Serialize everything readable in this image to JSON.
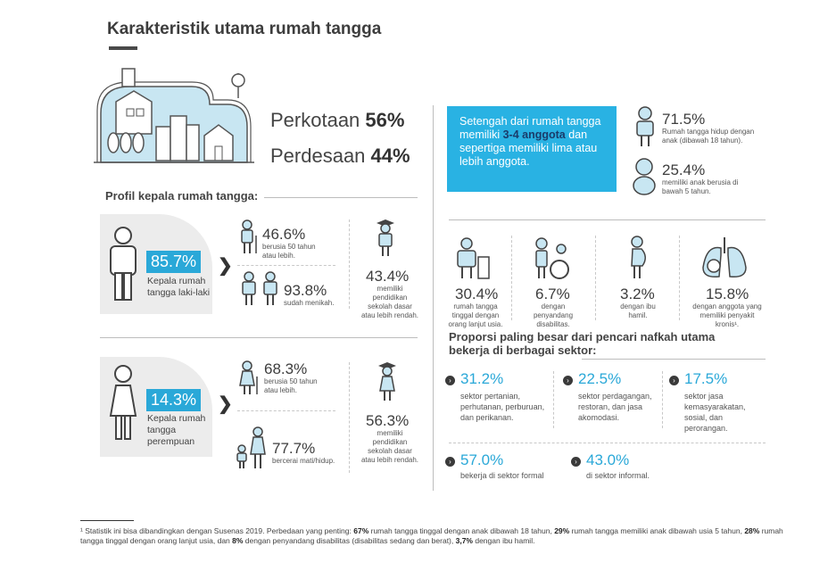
{
  "title": "Karakteristik utama rumah tangga",
  "urban": {
    "label": "Perkotaan",
    "value": "56%"
  },
  "rural": {
    "label": "Perdesaan",
    "value": "44%"
  },
  "profile_heading": "Profil kepala rumah tangga:",
  "male": {
    "pct": "85.7%",
    "label": "Kepala rumah tangga laki-laki",
    "age_pct": "46.6%",
    "age_caption": "berusia 50 tahun atau lebih.",
    "married_pct": "93.8%",
    "married_caption": "sudah menikah.",
    "edu_pct": "43.4%",
    "edu_caption": "memiliki pendidikan sekolah dasar atau lebih rendah."
  },
  "female": {
    "pct": "14.3%",
    "label": "Kepala rumah tangga perempuan",
    "age_pct": "68.3%",
    "age_caption": "berusia 50 tahun atau lebih.",
    "divorced_pct": "77.7%",
    "divorced_caption": "bercerai mati/hidup.",
    "edu_pct": "56.3%",
    "edu_caption": "memiliki pendidikan sekolah dasar atau lebih rendah."
  },
  "info_box": {
    "pre": "Setengah dari rumah tangga memiliki ",
    "bold": "3-4 anggota",
    "post": " dan sepertiga memiliki lima atau lebih anggota."
  },
  "children": {
    "pct": "71.5%",
    "caption": "Rumah tangga hidup dengan anak (dibawah 18 tahun)."
  },
  "under5": {
    "pct": "25.4%",
    "caption": "memiliki anak berusia di bawah 5 tahun."
  },
  "members": [
    {
      "pct": "30.4%",
      "caption": "rumah tangga tinggal dengan orang lanjut usia.",
      "icon": "elderly-icon"
    },
    {
      "pct": "6.7%",
      "caption": "dengan penyandang disabilitas.",
      "icon": "wheelchair-icon"
    },
    {
      "pct": "3.2%",
      "caption": "dengan ibu hamil.",
      "icon": "pregnant-icon"
    },
    {
      "pct": "15.8%",
      "caption": "dengan anggota yang memiliki penyakit kronis¹.",
      "icon": "lungs-icon"
    }
  ],
  "sector_heading": "Proporsi paling besar dari pencari nafkah utama bekerja di berbagai sektor:",
  "sectors": [
    {
      "pct": "31.2%",
      "caption": "sektor pertanian, perhutanan, perburuan, dan perikanan."
    },
    {
      "pct": "22.5%",
      "caption": "sektor perdagangan, restoran, dan jasa akomodasi."
    },
    {
      "pct": "17.5%",
      "caption": "sektor jasa kemasyarakatan, sosial, dan perorangan."
    }
  ],
  "formal": {
    "pct": "57.0%",
    "caption": "bekerja di sektor formal"
  },
  "informal": {
    "pct": "43.0%",
    "caption": "di sektor informal."
  },
  "bullet_glyph": "›",
  "footnote": {
    "t1": "¹ Statistik ini bisa dibandingkan dengan Susenas 2019. Perbedaan yang penting: ",
    "b1": "67%",
    "t2": " rumah tangga tinggal dengan anak dibawah 18 tahun, ",
    "b2": "29%",
    "t3": " rumah tangga memiliki anak dibawah usia 5 tahun, ",
    "b3": "28%",
    "t4": " rumah tangga tinggal dengan orang lanjut usia, dan ",
    "b4": "8%",
    "t5": " dengan penyandang disabilitas (disabilitas sedang dan berat), ",
    "b5": "3,7%",
    "t6": " dengan ibu hamil."
  },
  "colors": {
    "accent": "#2aa8d8",
    "info_box": "#29b2e3",
    "gray_panel": "#ececec",
    "light_blue": "#c8e6f2"
  }
}
